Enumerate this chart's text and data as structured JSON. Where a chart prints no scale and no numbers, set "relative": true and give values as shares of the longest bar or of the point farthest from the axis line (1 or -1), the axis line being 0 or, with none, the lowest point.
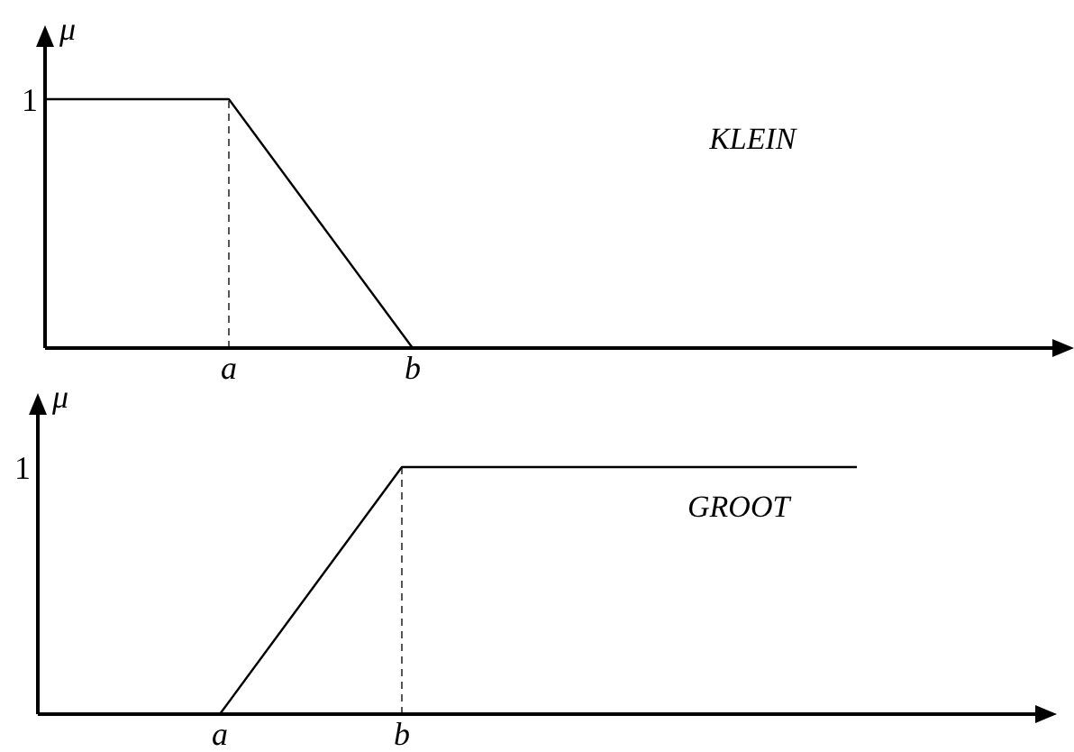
{
  "chart_data": [
    {
      "type": "line",
      "relative": true,
      "ylabel": "μ",
      "annotations": [
        "1"
      ],
      "categories": [
        null,
        null,
        "a",
        null,
        "b",
        null,
        null,
        null,
        null,
        null,
        null,
        null
      ],
      "series": [
        {
          "name": "KLEIN",
          "color": "#000000",
          "values": [
            1,
            1,
            1,
            0.5,
            0,
            null,
            null,
            null,
            null,
            null,
            null,
            null
          ]
        }
      ],
      "ref_lines": [
        {
          "axis": "x",
          "value": "a",
          "line_style": "dashed",
          "color": "#555555"
        }
      ]
    },
    {
      "type": "line",
      "relative": true,
      "ylabel": "μ",
      "annotations": [
        "1"
      ],
      "categories": [
        null,
        null,
        "a",
        null,
        "b",
        null,
        null,
        null,
        null,
        null,
        null,
        null
      ],
      "series": [
        {
          "name": "GROOT",
          "color": "#000000",
          "values": [
            null,
            null,
            0,
            0.5,
            1,
            1,
            1,
            1,
            1,
            1,
            null,
            null
          ]
        }
      ],
      "ref_lines": [
        {
          "axis": "x",
          "value": "b",
          "line_style": "dashed",
          "color": "#555555"
        }
      ]
    }
  ]
}
